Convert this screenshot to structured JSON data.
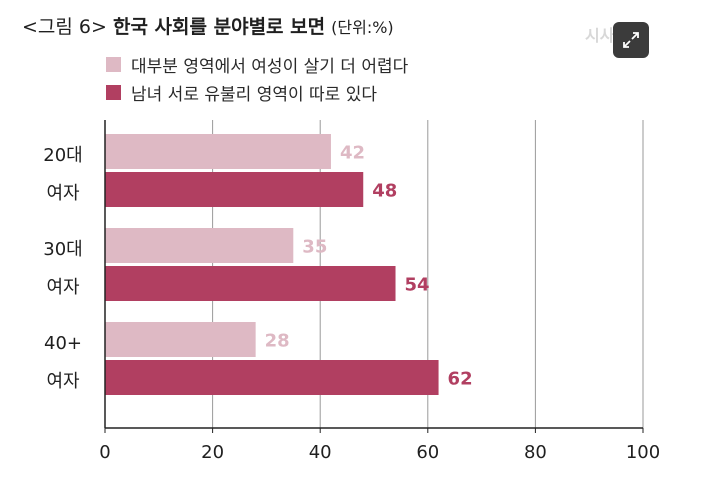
{
  "header": {
    "figure_label": "<그림 6>",
    "title": "한국 사회를 분야별로 보면",
    "unit": "(단위:%)"
  },
  "watermark": "시사",
  "expand_icon": "expand-icon",
  "colors": {
    "light": "#deb9c4",
    "dark": "#b13f61",
    "light_label": "#deb9c4",
    "dark_label": "#b13f61",
    "grid": "#9a9a9a",
    "axis": "#222222"
  },
  "chart_data": {
    "type": "bar",
    "orientation": "horizontal",
    "categories": [
      [
        "20대",
        "여자"
      ],
      [
        "30대",
        "여자"
      ],
      [
        "40+",
        "여자"
      ]
    ],
    "series": [
      {
        "name": "대부분 영역에서 여성이 살기 더 어렵다",
        "values": [
          42,
          35,
          28
        ]
      },
      {
        "name": "남녀 서로 유불리 영역이 따로 있다",
        "values": [
          48,
          54,
          62
        ]
      }
    ],
    "xlim": [
      0,
      100
    ],
    "xticks": [
      0,
      20,
      40,
      60,
      80,
      100
    ],
    "grid": true,
    "legend": "top-left"
  }
}
